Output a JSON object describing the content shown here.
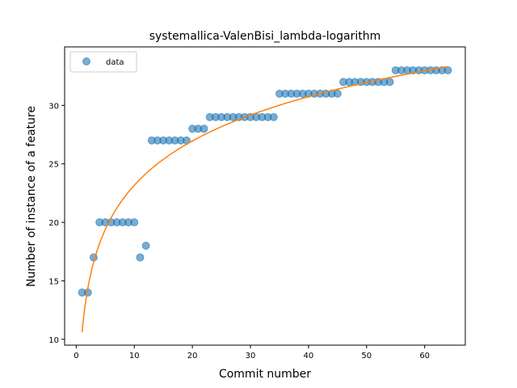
{
  "chart_data": {
    "type": "scatter",
    "title": "systemallica-ValenBisi_lambda-logarithm",
    "xlabel": "Commit number",
    "ylabel": "Number of instance of a feature",
    "xlim": [
      -2,
      67
    ],
    "ylim": [
      9.5,
      35
    ],
    "xticks": [
      0,
      10,
      20,
      30,
      40,
      50,
      60
    ],
    "yticks": [
      10,
      15,
      20,
      25,
      30
    ],
    "legend_position": "top-left",
    "series": [
      {
        "name": "data",
        "kind": "scatter",
        "color": "#1f77b4",
        "x": [
          1,
          2,
          3,
          4,
          5,
          6,
          7,
          8,
          9,
          10,
          11,
          12,
          13,
          14,
          15,
          16,
          17,
          18,
          19,
          20,
          21,
          22,
          23,
          24,
          25,
          26,
          27,
          28,
          29,
          30,
          31,
          32,
          33,
          34,
          35,
          36,
          37,
          38,
          39,
          40,
          41,
          42,
          43,
          44,
          45,
          46,
          47,
          48,
          49,
          50,
          51,
          52,
          53,
          54,
          55,
          56,
          57,
          58,
          59,
          60,
          61,
          62,
          63,
          64
        ],
        "y": [
          14,
          14,
          17,
          20,
          20,
          20,
          20,
          20,
          20,
          20,
          17,
          18,
          27,
          27,
          27,
          27,
          27,
          27,
          27,
          28,
          28,
          28,
          29,
          29,
          29,
          29,
          29,
          29,
          29,
          29,
          29,
          29,
          29,
          29,
          31,
          31,
          31,
          31,
          31,
          31,
          31,
          31,
          31,
          31,
          31,
          32,
          32,
          32,
          32,
          32,
          32,
          32,
          32,
          32,
          33,
          33,
          33,
          33,
          33,
          33,
          33,
          33,
          33,
          33
        ]
      },
      {
        "kind": "line",
        "color": "#ff7f0e",
        "fit": "logarithm",
        "a": 10.6,
        "b": 5.46,
        "x_range": [
          1,
          64
        ]
      }
    ]
  }
}
